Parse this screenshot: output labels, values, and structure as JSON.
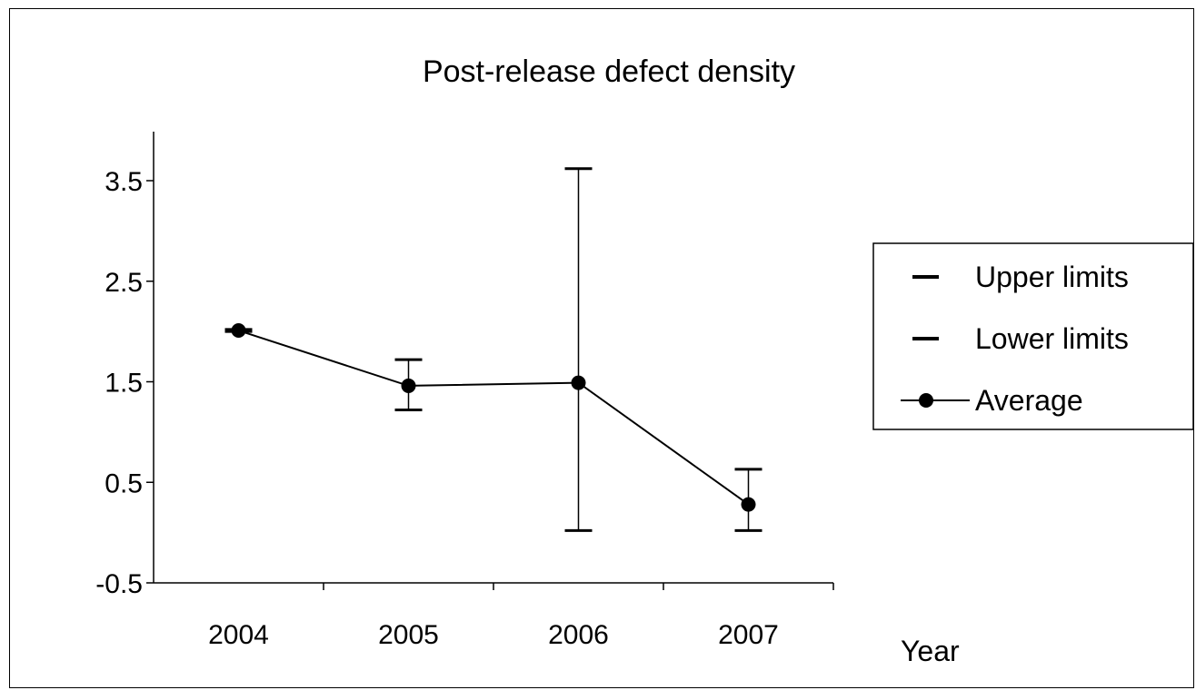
{
  "chart_data": {
    "type": "line",
    "title": "Post-release defect density",
    "xlabel": "Year",
    "ylabel": "",
    "categories": [
      "2004",
      "2005",
      "2006",
      "2007"
    ],
    "ylim": [
      -0.5,
      4.0
    ],
    "yticks": [
      "3.5",
      "2.5",
      "1.5",
      "0.5",
      "-0.5"
    ],
    "ytick_values": [
      3.5,
      2.5,
      1.5,
      0.5,
      -0.5
    ],
    "grid": false,
    "legend_position": "right",
    "series": [
      {
        "name": "Upper limits",
        "values": [
          2.02,
          1.72,
          3.62,
          0.63
        ]
      },
      {
        "name": "Lower limits",
        "values": [
          2.0,
          1.22,
          0.02,
          0.02
        ]
      },
      {
        "name": "Average",
        "values": [
          2.01,
          1.46,
          1.49,
          0.28
        ]
      }
    ]
  }
}
